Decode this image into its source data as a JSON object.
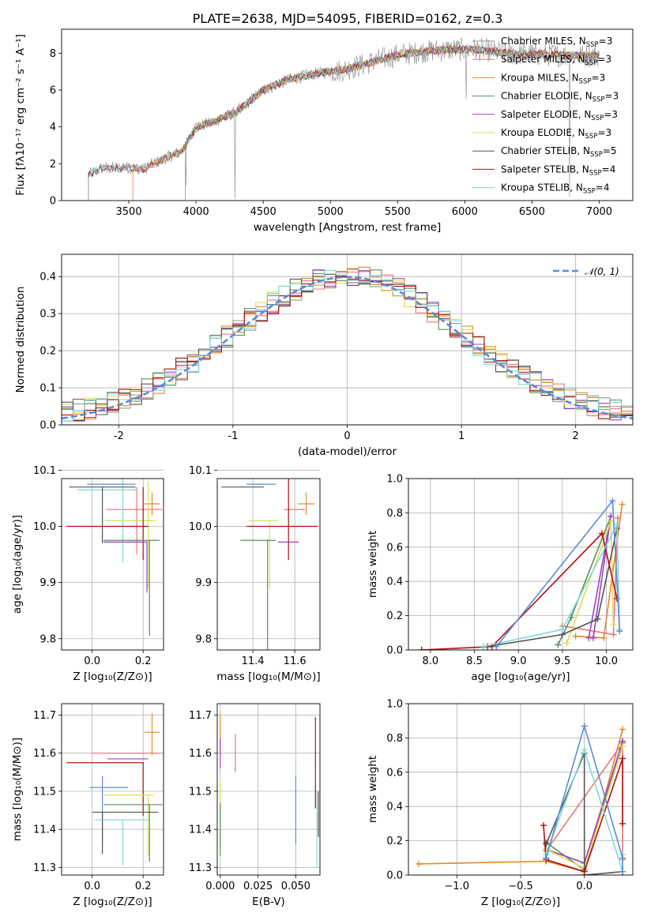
{
  "title": "PLATE=2638, MJD=54095, FIBERID=0162, z=0.3",
  "colors": {
    "Chabrier MILES": "#999999",
    "Salpeter MILES": "#e87878",
    "Kroupa MILES": "#e08a2c",
    "Chabrier ELODIE": "#5c8f5c",
    "Salpeter ELODIE": "#a040c0",
    "Kroupa ELODIE": "#dddd55",
    "Chabrier STELIB": "#555555",
    "Salpeter STELIB": "#b01010",
    "Kroupa STELIB": "#80d8d8",
    "normal": "#5b8bd8"
  },
  "chart_data": [
    {
      "id": "spectrum",
      "type": "line",
      "title": "PLATE=2638, MJD=54095, FIBERID=0162, z=0.3",
      "xlabel": "wavelength [Angstrom, rest frame]",
      "ylabel": "Flux [fλ10⁻¹⁷ erg cm⁻² s⁻¹ A⁻¹]",
      "xlim": [
        3000,
        7250
      ],
      "ylim": [
        0,
        9.3
      ],
      "xticks": [
        3500,
        4000,
        4500,
        5000,
        5500,
        6000,
        6500,
        7000
      ],
      "yticks": [
        0,
        2,
        4,
        6,
        8
      ],
      "continuum": [
        [
          3200,
          1.4
        ],
        [
          3300,
          1.75
        ],
        [
          3500,
          1.8
        ],
        [
          3600,
          1.7
        ],
        [
          3800,
          2.4
        ],
        [
          3900,
          2.7
        ],
        [
          4000,
          4.0
        ],
        [
          4100,
          4.2
        ],
        [
          4200,
          4.5
        ],
        [
          4300,
          4.8
        ],
        [
          4400,
          5.4
        ],
        [
          4500,
          6.0
        ],
        [
          4700,
          6.6
        ],
        [
          4900,
          6.9
        ],
        [
          5100,
          7.1
        ],
        [
          5300,
          7.5
        ],
        [
          5500,
          7.9
        ],
        [
          5700,
          8.1
        ],
        [
          5900,
          8.2
        ],
        [
          6100,
          8.2
        ],
        [
          6300,
          8.0
        ],
        [
          6500,
          7.95
        ],
        [
          6700,
          7.9
        ],
        [
          6900,
          7.85
        ],
        [
          7000,
          7.9
        ]
      ],
      "legend_position": "upper right",
      "series": [
        {
          "name": "Chabrier MILES, N_SSP=3",
          "start": 3200
        },
        {
          "name": "Salpeter MILES, N_SSP=3",
          "start": 3530
        },
        {
          "name": "Kroupa MILES, N_SSP=3",
          "start": 3530
        },
        {
          "name": "Chabrier ELODIE, N_SSP=3",
          "start": 3920
        },
        {
          "name": "Salpeter ELODIE, N_SSP=3",
          "start": 3920
        },
        {
          "name": "Kroupa ELODIE, N_SSP=3",
          "start": 3920
        },
        {
          "name": "Chabrier STELIB, N_SSP=5",
          "start": 3200
        },
        {
          "name": "Salpeter STELIB, N_SSP=4",
          "start": 3200
        },
        {
          "name": "Kroupa STELIB, N_SSP=4",
          "start": 3200
        }
      ],
      "legend_labels": [
        "Chabrier MILES, N",
        "Salpeter MILES, N",
        "Kroupa MILES, N",
        "Chabrier ELODIE, N",
        "Salpeter ELODIE, N",
        "Kroupa ELODIE, N",
        "Chabrier STELIB, N",
        "Salpeter STELIB, N",
        "Kroupa STELIB, N"
      ],
      "legend_subscript": "SSP",
      "legend_values": [
        "=3",
        "=3",
        "=3",
        "=3",
        "=3",
        "=3",
        "=5",
        "=4",
        "=4"
      ]
    },
    {
      "id": "residuals",
      "type": "line",
      "xlabel": "(data-model)/error",
      "ylabel": "Normed distribution",
      "xlim": [
        -2.5,
        2.5
      ],
      "ylim": [
        0,
        0.46
      ],
      "xticks": [
        -2,
        -1,
        0,
        1,
        2
      ],
      "yticks": [
        0.0,
        0.1,
        0.2,
        0.3,
        0.4
      ],
      "grid": true,
      "bin_width": 0.1,
      "reference_curve": "N(0,1)",
      "legend": "𝒩(0, 1)",
      "legend_position": "upper right"
    },
    {
      "id": "age-vs-Z",
      "type": "scatter",
      "xlabel": "Z [log₁₀(Z/Z⊙)]",
      "ylabel": "age  [log₁₀(age/yr)]",
      "xlim": [
        -0.12,
        0.28
      ],
      "ylim": [
        9.78,
        10.085
      ],
      "xticks": [
        0.0,
        0.2
      ],
      "yticks": [
        9.8,
        9.9,
        10.0,
        10.1
      ],
      "grid": true,
      "points": [
        {
          "series": "Kroupa MILES",
          "x": 0.235,
          "y": 10.04,
          "xerr": [
            0.03,
            0.03
          ],
          "yerr": [
            0.02,
            0.02
          ]
        },
        {
          "series": "Salpeter MILES",
          "x": 0.175,
          "y": 10.03,
          "xerr": [
            0.12,
            0.1
          ],
          "yerr": [
            0.08,
            0.04
          ]
        },
        {
          "series": "Kroupa STELIB",
          "x": 0.12,
          "y": 10.065,
          "xerr": [
            0.18,
            0.06
          ],
          "yerr": [
            0.13,
            0.02
          ]
        },
        {
          "series": "normal",
          "x": 0.04,
          "y": 10.075,
          "xerr": [
            0.06,
            0.13
          ],
          "yerr": [
            0.0,
            0.0
          ]
        },
        {
          "series": "Chabrier STELIB",
          "x": 0.04,
          "y": 10.07,
          "xerr": [
            0.13,
            0.13
          ],
          "yerr": [
            0.1,
            0.0
          ]
        },
        {
          "series": "Kroupa ELODIE",
          "x": 0.22,
          "y": 10.01,
          "xerr": [
            0.17,
            0.03
          ],
          "yerr": [
            0.12,
            0.07
          ]
        },
        {
          "series": "Salpeter STELIB",
          "x": 0.2,
          "y": 10.0,
          "xerr": [
            0.3,
            0.02
          ],
          "yerr": [
            0.06,
            0.07
          ]
        },
        {
          "series": "Salpeter ELODIE",
          "x": 0.215,
          "y": 9.972,
          "xerr": [
            0.17,
            0.0
          ],
          "yerr": [
            0.09,
            0.0
          ]
        },
        {
          "series": "Chabrier ELODIE",
          "x": 0.225,
          "y": 9.975,
          "xerr": [
            0.18,
            0.04
          ],
          "yerr": [
            0.17,
            0.0
          ]
        }
      ]
    },
    {
      "id": "age-vs-mass",
      "type": "scatter",
      "xlabel": "mass [log₁₀(M/M⊙)]",
      "xlim": [
        11.23,
        11.72
      ],
      "ylim": [
        9.78,
        10.085
      ],
      "xticks": [
        11.4,
        11.6
      ],
      "yticks": [
        9.8,
        9.9,
        10.0,
        10.1
      ],
      "grid": true,
      "points": [
        {
          "series": "Kroupa MILES",
          "x": 11.655,
          "y": 10.04,
          "xerr": [
            0.04,
            0.04
          ],
          "yerr": [
            0.02,
            0.02
          ]
        },
        {
          "series": "Salpeter MILES",
          "x": 11.6,
          "y": 10.03,
          "xerr": [
            0.05,
            0.05
          ],
          "yerr": [
            0.0,
            0.0
          ]
        },
        {
          "series": "normal",
          "x": 11.43,
          "y": 10.075,
          "xerr": [
            0.06,
            0.08
          ],
          "yerr": [
            0.0,
            0.0
          ]
        },
        {
          "series": "Chabrier STELIB",
          "x": 11.45,
          "y": 10.07,
          "xerr": [
            0.2,
            0.0
          ],
          "yerr": [
            0.0,
            0.0
          ]
        },
        {
          "series": "Kroupa ELODIE",
          "x": 11.48,
          "y": 10.01,
          "xerr": [
            0.1,
            0.04
          ],
          "yerr": [
            0.12,
            0.0
          ]
        },
        {
          "series": "Salpeter STELIB",
          "x": 11.57,
          "y": 10.0,
          "xerr": [
            0.2,
            0.14
          ],
          "yerr": [
            0.06,
            0.09
          ]
        },
        {
          "series": "Salpeter ELODIE",
          "x": 11.59,
          "y": 9.972,
          "xerr": [
            0.07,
            0.03
          ],
          "yerr": [
            0.0,
            0.0
          ]
        },
        {
          "series": "Chabrier ELODIE",
          "x": 11.47,
          "y": 9.975,
          "xerr": [
            0.13,
            0.04
          ],
          "yerr": [
            0.2,
            0.0
          ]
        }
      ]
    },
    {
      "id": "massweight-vs-age",
      "type": "line",
      "xlabel": "age  [log₁₀(age/yr)]",
      "ylabel": "mass weight",
      "xlim": [
        7.75,
        10.3
      ],
      "ylim": [
        0,
        1.0
      ],
      "xticks": [
        8.0,
        8.5,
        9.0,
        9.5,
        10.0
      ],
      "yticks": [
        0.0,
        0.2,
        0.4,
        0.6,
        0.8,
        1.0
      ],
      "grid": true,
      "series": [
        {
          "name": "Kroupa MILES",
          "x": [
            9.65,
            9.97,
            10.18
          ],
          "y": [
            0.08,
            0.07,
            0.85
          ]
        },
        {
          "name": "Salpeter MILES",
          "x": [
            9.5,
            10.08,
            10.13
          ],
          "y": [
            0.14,
            0.09,
            0.77
          ]
        },
        {
          "name": "Chabrier ELODIE",
          "x": [
            9.45,
            9.6,
            10.05
          ],
          "y": [
            0.03,
            0.19,
            0.78
          ]
        },
        {
          "name": "Salpeter ELODIE",
          "x": [
            9.85,
            10.05,
            9.8
          ],
          "y": [
            0.07,
            0.78,
            0.07
          ]
        },
        {
          "name": "Kroupa ELODIE",
          "x": [
            9.55,
            10.05,
            10.08
          ],
          "y": [
            0.04,
            0.75,
            0.15
          ]
        },
        {
          "name": "Chabrier STELIB",
          "x": [
            8.65,
            9.5,
            9.9,
            10.12
          ],
          "y": [
            0.02,
            0.09,
            0.18,
            0.71
          ]
        },
        {
          "name": "Salpeter STELIB",
          "x": [
            7.9,
            8.7,
            9.95,
            10.12
          ],
          "y": [
            0.0,
            0.02,
            0.68,
            0.3
          ]
        },
        {
          "name": "Kroupa STELIB",
          "x": [
            8.6,
            9.5,
            10.12,
            10.15
          ],
          "y": [
            0.02,
            0.12,
            0.73,
            0.12
          ]
        },
        {
          "name": "normal",
          "x": [
            8.75,
            10.07,
            10.15
          ],
          "y": [
            0.02,
            0.87,
            0.11
          ]
        }
      ]
    },
    {
      "id": "mass-vs-Z",
      "type": "scatter",
      "xlabel": "Z [log₁₀(Z/Z⊙)]",
      "ylabel": "mass [log₁₀(M/M⊙)]",
      "xlim": [
        -0.12,
        0.28
      ],
      "ylim": [
        11.28,
        11.73
      ],
      "xticks": [
        0.0,
        0.2
      ],
      "yticks": [
        11.3,
        11.4,
        11.5,
        11.6,
        11.7
      ],
      "grid": true,
      "points": [
        {
          "series": "Kroupa MILES",
          "x": 0.235,
          "y": 11.655,
          "xerr": [
            0.03,
            0.03
          ],
          "yerr": [
            0.06,
            0.05
          ]
        },
        {
          "series": "Salpeter MILES",
          "x": 0.2,
          "y": 11.6,
          "xerr": [
            0.2,
            0.07
          ],
          "yerr": [
            0.0,
            0.0
          ]
        },
        {
          "series": "Salpeter ELODIE",
          "x": 0.18,
          "y": 11.585,
          "xerr": [
            0.12,
            0.04
          ],
          "yerr": [
            0.0,
            0.0
          ]
        },
        {
          "series": "Salpeter STELIB",
          "x": 0.2,
          "y": 11.575,
          "xerr": [
            0.3,
            0.0
          ],
          "yerr": [
            0.14,
            0.0
          ]
        },
        {
          "series": "normal",
          "x": 0.04,
          "y": 11.51,
          "xerr": [
            0.05,
            0.1
          ],
          "yerr": [
            0.15,
            0.03
          ]
        },
        {
          "series": "Kroupa ELODIE",
          "x": 0.22,
          "y": 11.49,
          "xerr": [
            0.18,
            0.02
          ],
          "yerr": [
            0.16,
            0.0
          ]
        },
        {
          "series": "Chabrier ELODIE",
          "x": 0.225,
          "y": 11.465,
          "xerr": [
            0.18,
            0.05
          ],
          "yerr": [
            0.15,
            0.0
          ]
        },
        {
          "series": "Chabrier STELIB",
          "x": 0.04,
          "y": 11.445,
          "xerr": [
            0.04,
            0.22
          ],
          "yerr": [
            0.11,
            0.0
          ]
        },
        {
          "series": "Kroupa STELIB",
          "x": 0.12,
          "y": 11.425,
          "xerr": [
            0.11,
            0.1
          ],
          "yerr": [
            0.12,
            0.0
          ]
        }
      ]
    },
    {
      "id": "mass-vs-EBV",
      "type": "scatter",
      "xlabel": "E(B-V)",
      "xlim": [
        -0.002,
        0.066
      ],
      "ylim": [
        11.28,
        11.73
      ],
      "xticks": [
        0.0,
        0.025,
        0.05
      ],
      "xtick_labels": [
        "0.000",
        "0.025",
        "0.050"
      ],
      "yticks": [
        11.3,
        11.4,
        11.5,
        11.6,
        11.7
      ],
      "grid": true,
      "points": [
        {
          "series": "Kroupa MILES",
          "x": 0.0,
          "y": 11.655,
          "yerr": [
            0.06,
            0.05
          ]
        },
        {
          "series": "Salpeter ELODIE",
          "x": 0.0,
          "y": 11.6,
          "yerr": [
            0.04,
            0.04
          ]
        },
        {
          "series": "Kroupa ELODIE",
          "x": 0.0,
          "y": 11.45,
          "yerr": [
            0.1,
            0.08
          ]
        },
        {
          "series": "Chabrier ELODIE",
          "x": 0.0,
          "y": 11.4,
          "yerr": [
            0.07,
            0.07
          ]
        },
        {
          "series": "Salpeter MILES",
          "x": 0.01,
          "y": 11.6,
          "yerr": [
            0.05,
            0.05
          ]
        },
        {
          "series": "normal",
          "x": 0.05,
          "y": 11.45,
          "yerr": [
            0.09,
            0.09
          ]
        },
        {
          "series": "Salpeter STELIB",
          "x": 0.063,
          "y": 11.575,
          "yerr": [
            0.12,
            0.12
          ]
        },
        {
          "series": "Chabrier STELIB",
          "x": 0.065,
          "y": 11.44,
          "yerr": [
            0.06,
            0.06
          ]
        },
        {
          "series": "Kroupa STELIB",
          "x": 0.064,
          "y": 11.4,
          "yerr": [
            0.1,
            0.1
          ]
        }
      ]
    },
    {
      "id": "massweight-vs-Z",
      "type": "line",
      "xlabel": "Z [log₁₀(Z/Z⊙)]",
      "ylabel": "mass weight",
      "xlim": [
        -1.38,
        0.38
      ],
      "ylim": [
        0,
        1.0
      ],
      "xticks": [
        -1.0,
        -0.5,
        0.0
      ],
      "xtick_labels": [
        "−1.0",
        "−0.5",
        "0.0"
      ],
      "yticks": [
        0.0,
        0.2,
        0.4,
        0.6,
        0.8,
        1.0
      ],
      "grid": true,
      "series": [
        {
          "name": "Kroupa MILES",
          "x": [
            -1.3,
            -0.3,
            0.0,
            0.3
          ],
          "y": [
            0.065,
            0.08,
            0.02,
            0.85
          ]
        },
        {
          "name": "Salpeter MILES",
          "x": [
            -0.3,
            0.3,
            0.3
          ],
          "y": [
            0.14,
            0.77,
            0.09
          ]
        },
        {
          "name": "Chabrier ELODIE",
          "x": [
            -0.3,
            0.0,
            0.3
          ],
          "y": [
            0.19,
            0.03,
            0.78
          ]
        },
        {
          "name": "Salpeter ELODIE",
          "x": [
            -0.3,
            0.0,
            0.3
          ],
          "y": [
            0.15,
            0.07,
            0.78
          ]
        },
        {
          "name": "Kroupa ELODIE",
          "x": [
            -0.3,
            0.0,
            0.3
          ],
          "y": [
            0.15,
            0.04,
            0.75
          ]
        },
        {
          "name": "Chabrier STELIB",
          "x": [
            -0.3,
            0.0,
            0.0,
            0.3
          ],
          "y": [
            0.18,
            0.71,
            0.0,
            0.02
          ]
        },
        {
          "name": "Salpeter STELIB",
          "x": [
            -0.32,
            -0.3,
            0.0,
            0.3,
            0.3
          ],
          "y": [
            0.29,
            0.09,
            0.02,
            0.68,
            0.3
          ]
        },
        {
          "name": "Kroupa STELIB",
          "x": [
            -0.3,
            0.0,
            0.3,
            0.3
          ],
          "y": [
            0.12,
            0.73,
            0.02,
            0.12
          ]
        },
        {
          "name": "normal",
          "x": [
            -0.3,
            0.0,
            0.3,
            0.3
          ],
          "y": [
            0.1,
            0.87,
            0.1,
            0.02
          ]
        }
      ]
    }
  ]
}
